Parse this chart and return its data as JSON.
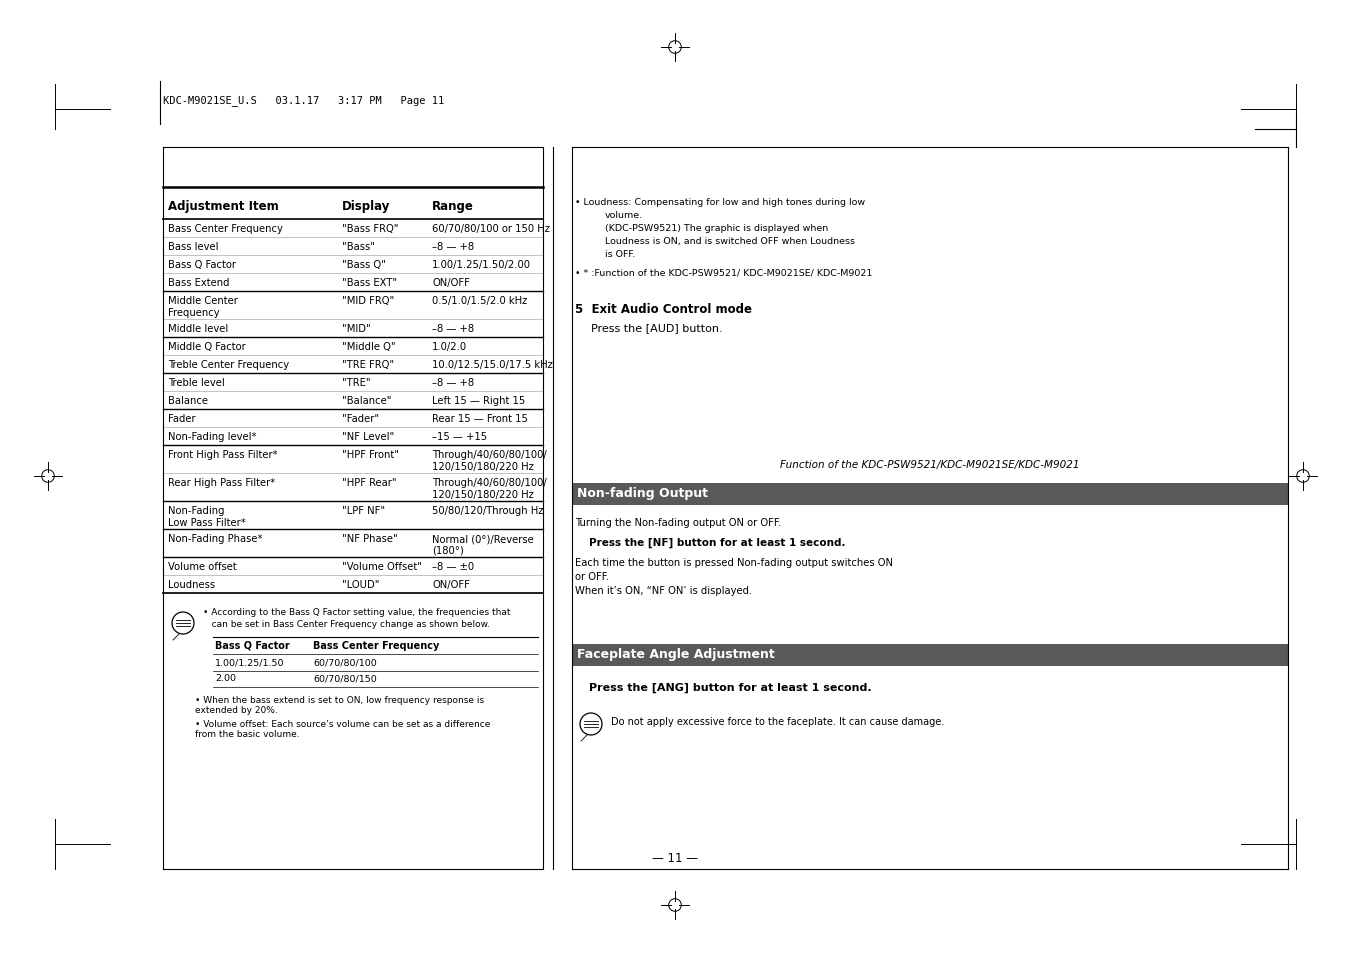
{
  "bg_color": "#ffffff",
  "header_text": "KDC-M9021SE_U.S   03.1.17   3:17 PM   Page 11",
  "table_headers": [
    "Adjustment Item",
    "Display",
    "Range"
  ],
  "table_rows": [
    [
      "Bass Center Frequency",
      "\"Bass FRQ\"",
      "60/70/80/100 or 150 Hz"
    ],
    [
      "Bass level",
      "\"Bass\"",
      "–8 — +8"
    ],
    [
      "Bass Q Factor",
      "\"Bass Q\"",
      "1.00/1.25/1.50/2.00"
    ],
    [
      "Bass Extend",
      "\"Bass EXT\"",
      "ON/OFF"
    ],
    [
      "Middle Center\nFrequency",
      "\"MID FRQ\"",
      "0.5/1.0/1.5/2.0 kHz"
    ],
    [
      "Middle level",
      "\"MID\"",
      "–8 — +8"
    ],
    [
      "Middle Q Factor",
      "\"Middle Q\"",
      "1.0/2.0"
    ],
    [
      "Treble Center Frequency",
      "\"TRE FRQ\"",
      "10.0/12.5/15.0/17.5 kHz"
    ],
    [
      "Treble level",
      "\"TRE\"",
      "–8 — +8"
    ],
    [
      "Balance",
      "\"Balance\"",
      "Left 15 — Right 15"
    ],
    [
      "Fader",
      "\"Fader\"",
      "Rear 15 — Front 15"
    ],
    [
      "Non-Fading level*",
      "\"NF Level\"",
      "–15 — +15"
    ],
    [
      "Front High Pass Filter*",
      "\"HPF Front\"",
      "Through/40/60/80/100/\n120/150/180/220 Hz"
    ],
    [
      "Rear High Pass Filter*",
      "\"HPF Rear\"",
      "Through/40/60/80/100/\n120/150/180/220 Hz"
    ],
    [
      "Non-Fading\nLow Pass Filter*",
      "\"LPF NF\"",
      "50/80/120/Through Hz"
    ],
    [
      "Non-Fading Phase*",
      "\"NF Phase\"",
      "Normal (0°)/Reverse\n(180°)"
    ],
    [
      "Volume offset",
      "\"Volume Offset\"",
      "–8 — ±0"
    ],
    [
      "Loudness",
      "\"LOUD\"",
      "ON/OFF"
    ]
  ],
  "note_text_1a": "According to the Bass Q Factor setting value, the frequencies that",
  "note_text_1b": "can be set in Bass Center Frequency change as shown below.",
  "bass_table_headers": [
    "Bass Q Factor",
    "Bass Center Frequency"
  ],
  "bass_table_rows": [
    [
      "1.00/1.25/1.50",
      "60/70/80/100"
    ],
    [
      "2.00",
      "60/70/80/150"
    ]
  ],
  "note_text_2": "When the bass extend is set to ON, low frequency response is\nextended by 20%.",
  "note_text_3": "Volume offset: Each source’s volume can be set as a difference\nfrom the basic volume.",
  "bullet_1_line1": "Loudness: Compensating for low and high tones during low",
  "bullet_1_line2": "volume.",
  "bullet_1_line3": "(KDC-PSW9521) The graphic is displayed when",
  "bullet_1_line4": "Loudness is ON, and is switched OFF when Loudness",
  "bullet_1_line5": "is OFF.",
  "bullet_2": "* :Function of the KDC-PSW9521/ KDC-M9021SE/ KDC-M9021",
  "step5_title": "5  Exit Audio Control mode",
  "step5_text": "Press the [AUD] button.",
  "function_note": "Function of the KDC-PSW9521/KDC-M9021SE/KDC-M9021",
  "section1_title": "Non-fading Output",
  "section1_title_bg": "#595959",
  "section1_title_color": "#ffffff",
  "s1_line1": "Turning the Non-fading output ON or OFF.",
  "s1_line2": "Press the [NF] button for at least 1 second.",
  "s1_line3": "Each time the button is pressed Non-fading output switches ON",
  "s1_line4": "or OFF.",
  "s1_line5": "When it’s ON, “NF ON’ is displayed.",
  "section2_title": "Faceplate Angle Adjustment",
  "section2_title_bg": "#595959",
  "section2_title_color": "#ffffff",
  "s2_line1": "Press the [ANG] button for at least 1 second.",
  "s2_note": "Do not apply excessive force to the faceplate. It can cause damage.",
  "page_number": "— 11 —"
}
